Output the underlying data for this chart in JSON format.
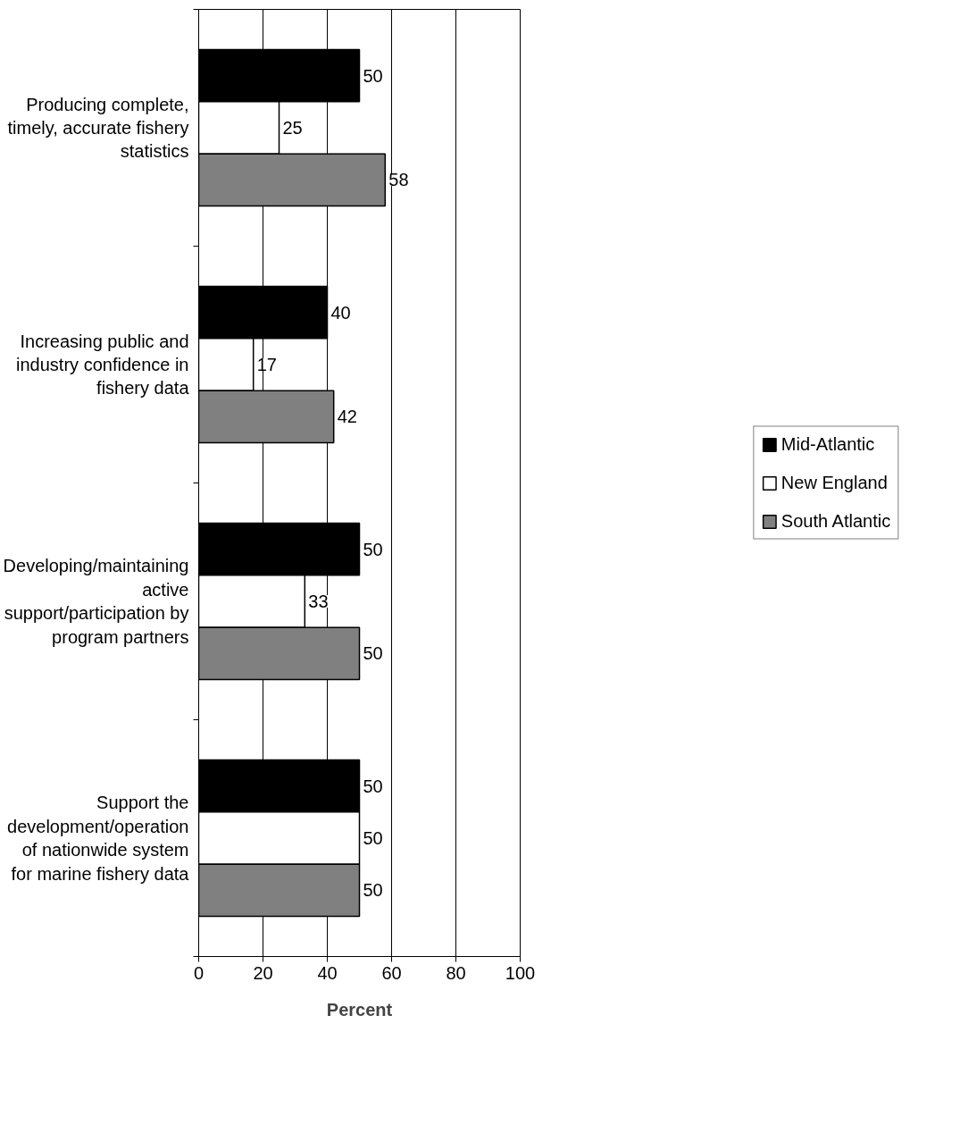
{
  "chart_data": {
    "type": "bar",
    "orientation": "horizontal",
    "xlabel": "Percent",
    "categories": [
      "Producing complete,\ntimely, accurate fishery\nstatistics",
      "Increasing public and\nindustry confidence in\nfishery data",
      "Developing/maintaining\nactive\nsupport/participation by\nprogram partners",
      "Support the\ndevelopment/operation\nof nationwide system\nfor marine fishery data"
    ],
    "series": [
      {
        "name": "Mid-Atlantic",
        "color": "#000000",
        "values": [
          50,
          40,
          50,
          50
        ]
      },
      {
        "name": "New England",
        "color": "#ffffff",
        "values": [
          25,
          17,
          33,
          50
        ]
      },
      {
        "name": "South Atlantic",
        "color": "#808080",
        "values": [
          58,
          42,
          50,
          50
        ]
      }
    ],
    "xlim": [
      0,
      100
    ],
    "xticks": [
      0,
      20,
      40,
      60,
      80,
      100
    ],
    "grid": "x",
    "legend": "right",
    "data_labels": true
  }
}
